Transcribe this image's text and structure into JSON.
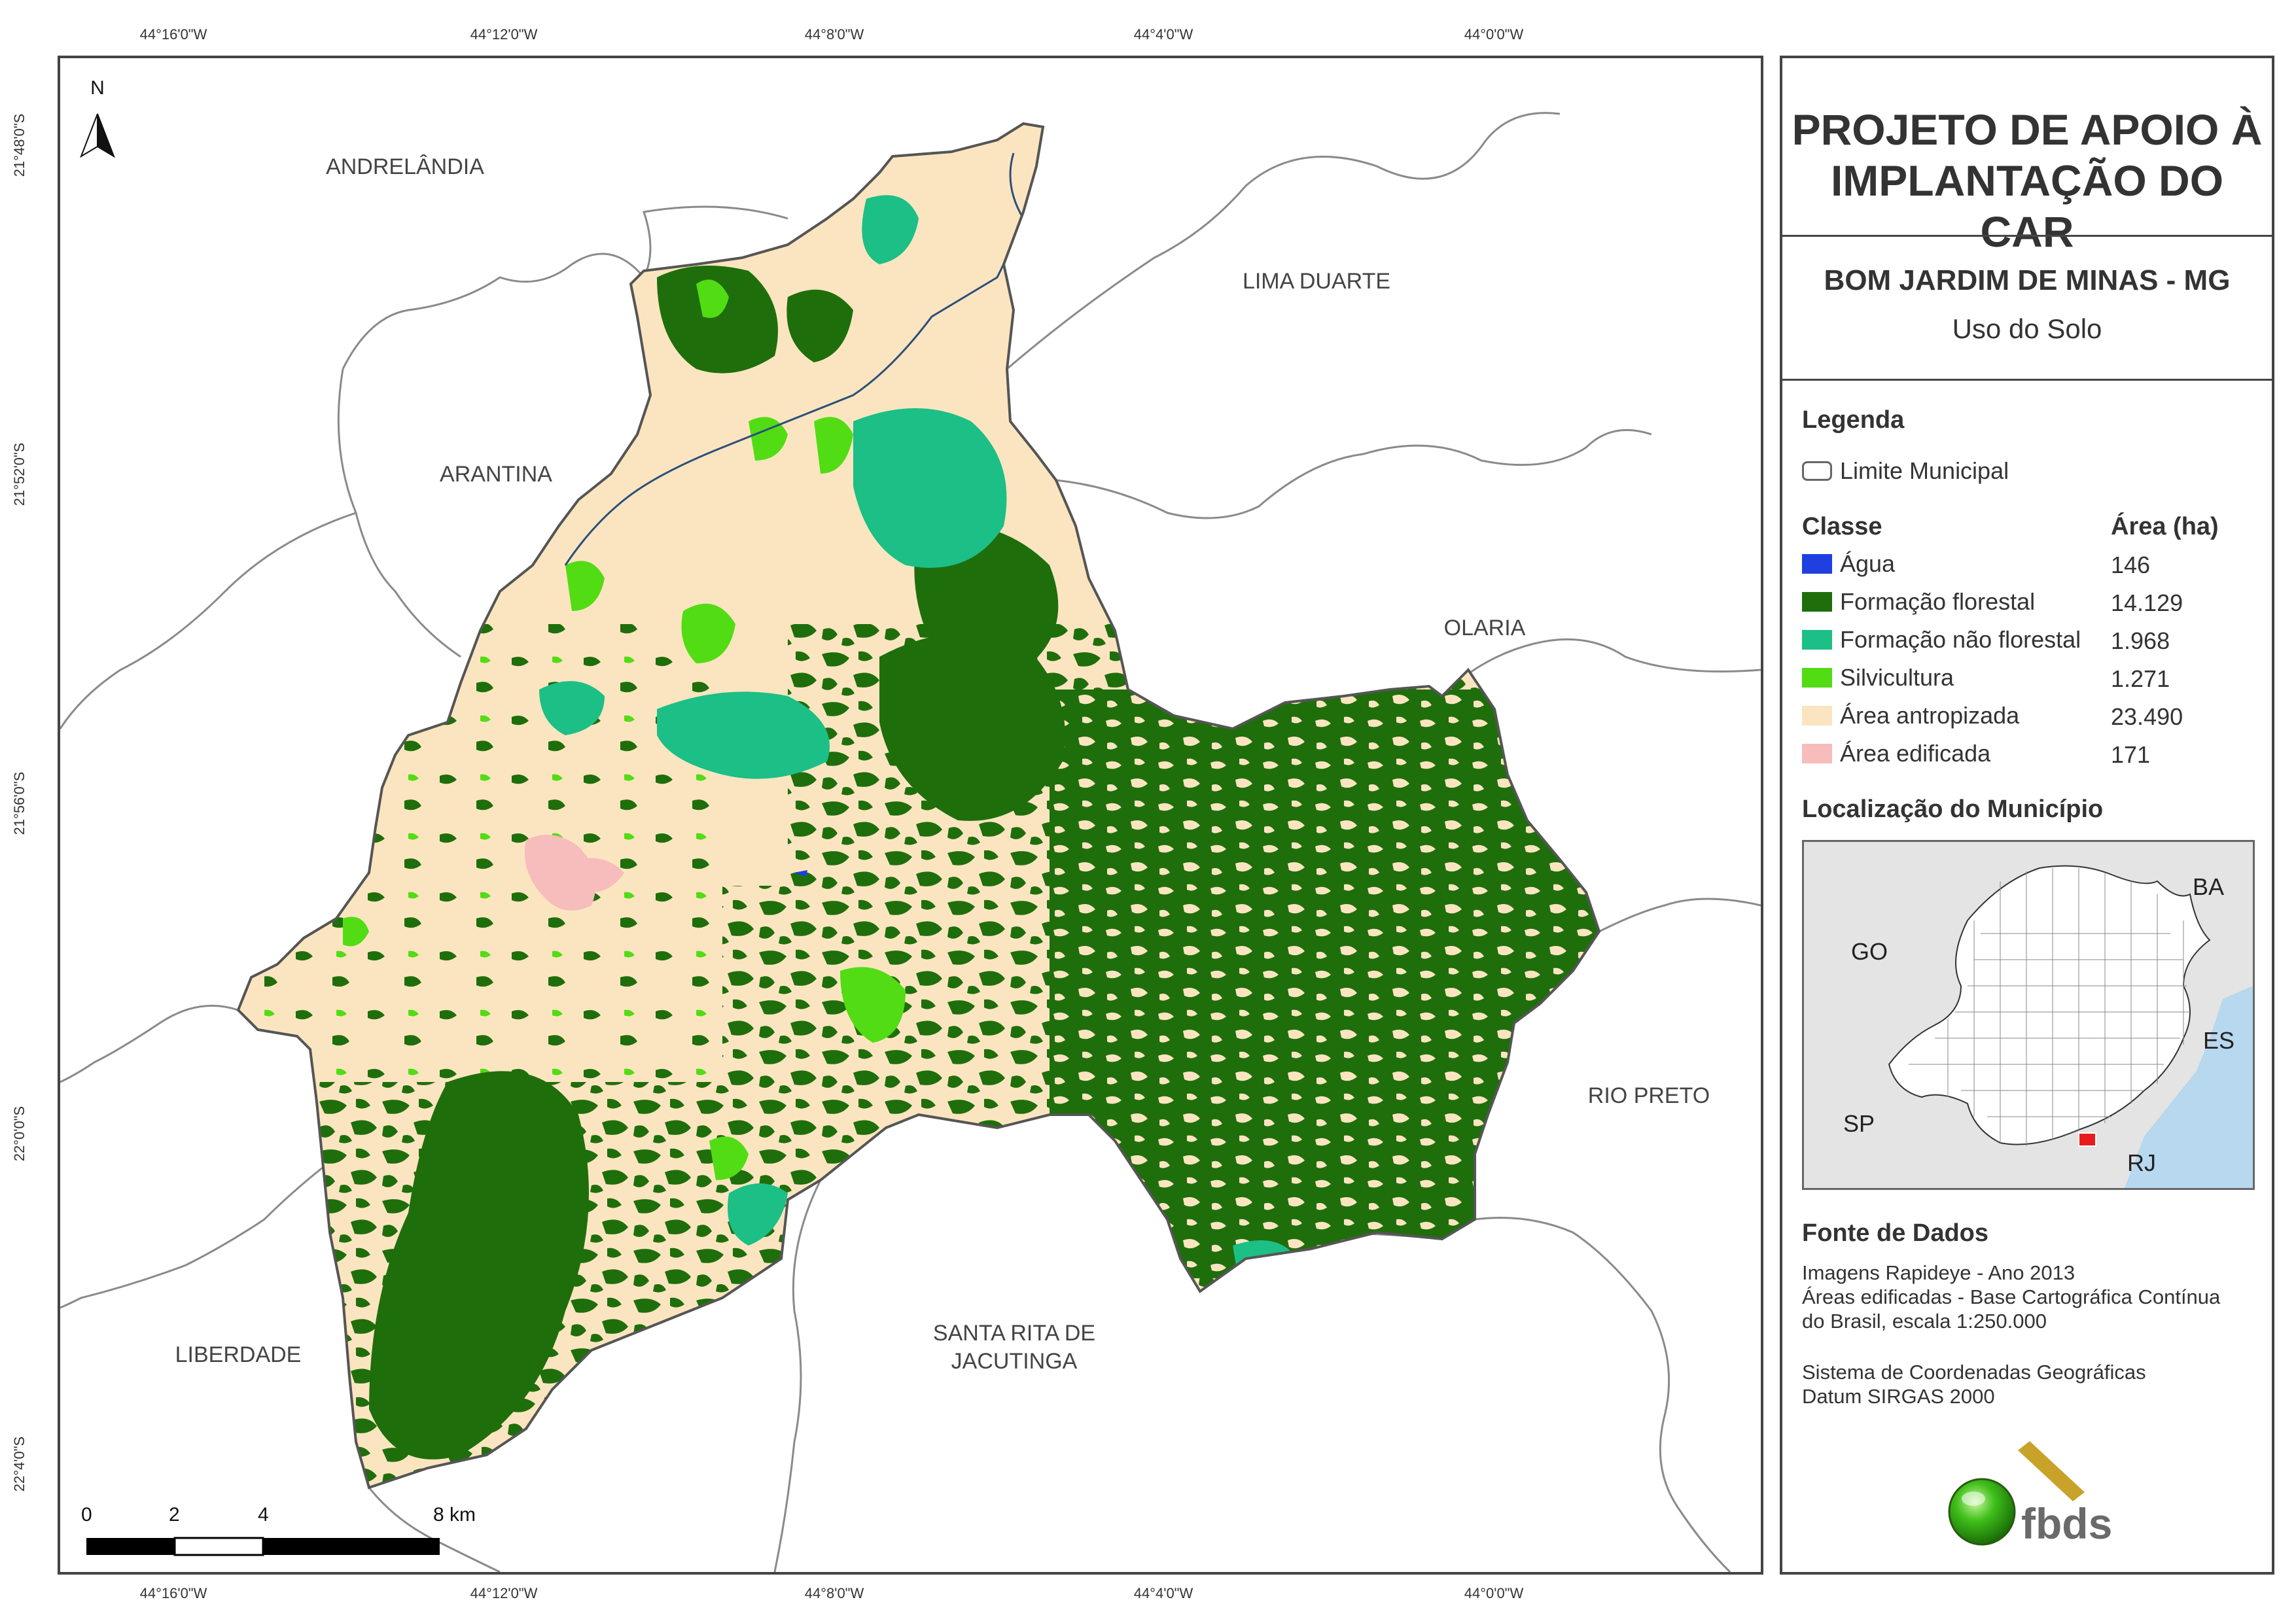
{
  "coordinates": {
    "longitudes": [
      "44°16'0\"W",
      "44°12'0\"W",
      "44°8'0\"W",
      "44°4'0\"W",
      "44°0'0\"W"
    ],
    "latitudes": [
      "21°48'0\"S",
      "21°52'0\"S",
      "21°56'0\"S",
      "22°0'0\"S",
      "22°4'0\"S"
    ]
  },
  "neighbors": {
    "andrelandia": "ANDRELÂNDIA",
    "lima_duarte": "LIMA DUARTE",
    "arantina": "ARANTINA",
    "olaria": "OLARIA",
    "rio_preto": "RIO PRETO",
    "santa_rita": [
      "SANTA RITA DE",
      "JACUTINGA"
    ],
    "liberdade": "LIBERDADE"
  },
  "north_arrow": "N",
  "scale_bar": {
    "ticks": [
      "0",
      "2",
      "4",
      "8 km"
    ]
  },
  "panel": {
    "title": [
      "PROJETO DE APOIO À",
      "IMPLANTAÇÃO DO CAR"
    ],
    "municipality": "BOM JARDIM DE MINAS - MG",
    "theme": "Uso do Solo",
    "legend_heading": "Legenda",
    "boundary_label": "Limite Municipal",
    "class_heading": "Classe",
    "area_heading": "Área (ha)",
    "classes": [
      {
        "label": "Água",
        "area": "146",
        "color": "#1f3fe0"
      },
      {
        "label": "Formação florestal",
        "area": "14.129",
        "color": "#1f6e0c"
      },
      {
        "label": "Formação não florestal",
        "area": "1.968",
        "color": "#1cbf86"
      },
      {
        "label": "Silvicultura",
        "area": "1.271",
        "color": "#52dc14"
      },
      {
        "label": "Área antropizada",
        "area": "23.490",
        "color": "#fbe5c0"
      },
      {
        "label": "Área edificada",
        "area": "171",
        "color": "#f7bcbc"
      }
    ],
    "location_heading": "Localização do Município",
    "inset_labels": {
      "ba": "BA",
      "go": "GO",
      "es": "ES",
      "sp": "SP",
      "rj": "RJ"
    },
    "sources_heading": "Fonte de Dados",
    "sources": [
      "Imagens Rapideye - Ano 2013",
      "Áreas edificadas - Base Cartográfica Contínua",
      "do Brasil, escala 1:250.000",
      "",
      "Sistema de Coordenadas Geográficas",
      "Datum SIRGAS 2000"
    ],
    "logo_text": "fbds"
  }
}
